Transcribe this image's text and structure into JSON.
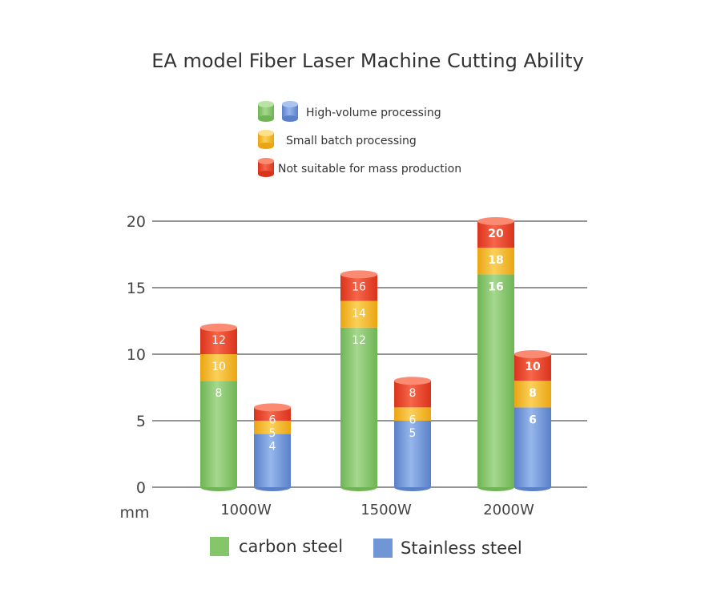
{
  "chart_data": {
    "type": "bar",
    "title": "EA model Fiber Laser Machine Cutting Ability",
    "unit_label": "mm",
    "categories": [
      "1000W",
      "1500W",
      "2000W"
    ],
    "ylim": [
      0,
      20
    ],
    "yticks": [
      "0",
      "5",
      "10",
      "15",
      "20"
    ],
    "grid": true,
    "series": [
      {
        "name": "carbon steel",
        "color": "#86c66a",
        "high_volume": [
          8,
          12,
          16
        ],
        "small_batch": [
          10,
          14,
          18
        ],
        "not_suitable": [
          12,
          16,
          20
        ]
      },
      {
        "name": "Stainless steel",
        "color": "#7096d6",
        "high_volume": [
          4,
          5,
          6
        ],
        "small_batch": [
          5,
          6,
          8
        ],
        "not_suitable": [
          6,
          8,
          10
        ]
      }
    ],
    "levels": [
      {
        "key": "high_volume",
        "label": "High-volume processing"
      },
      {
        "key": "small_batch",
        "label": "Small batch processing",
        "color": "#f3b824"
      },
      {
        "key": "not_suitable",
        "label": "Not suitable for mass production",
        "color": "#e9442a"
      }
    ],
    "legend_colors": {
      "green": "#86c66a",
      "blue": "#7096d6",
      "yellow": "#f3b824",
      "red": "#e9442a"
    }
  }
}
